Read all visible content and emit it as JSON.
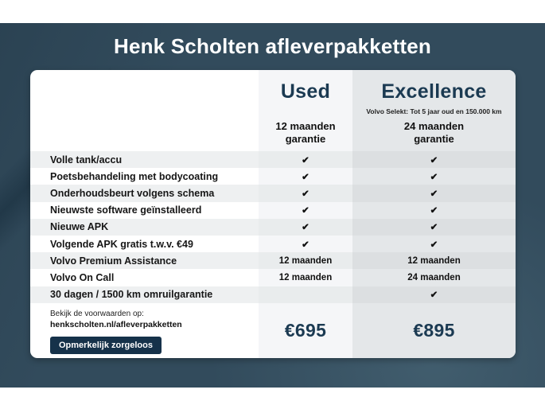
{
  "title": "Henk Scholten afleverpakketten",
  "packages": {
    "used": {
      "name": "Used",
      "subtitle": "",
      "warranty_line1": "12 maanden",
      "warranty_line2": "garantie",
      "price": "€695"
    },
    "excellence": {
      "name": "Excellence",
      "subtitle": "Volvo Selekt: Tot 5 jaar oud en 150.000 km",
      "warranty_line1": "24 maanden",
      "warranty_line2": "garantie",
      "price": "€895"
    }
  },
  "rows": [
    {
      "label": "Volle tank/accu",
      "used": "✔",
      "excellence": "✔"
    },
    {
      "label": "Poetsbehandeling met bodycoating",
      "used": "✔",
      "excellence": "✔"
    },
    {
      "label": "Onderhoudsbeurt volgens schema",
      "used": "✔",
      "excellence": "✔"
    },
    {
      "label": "Nieuwste software geïnstalleerd",
      "used": "✔",
      "excellence": "✔"
    },
    {
      "label": "Nieuwe APK",
      "used": "✔",
      "excellence": "✔"
    },
    {
      "label": "Volgende APK gratis t.w.v. €49",
      "used": "✔",
      "excellence": "✔"
    },
    {
      "label": "Volvo Premium Assistance",
      "used": "12 maanden",
      "excellence": "12 maanden"
    },
    {
      "label": "Volvo On Call",
      "used": "12 maanden",
      "excellence": "24 maanden"
    },
    {
      "label": "30 dagen / 1500 km omruilgarantie",
      "used": "",
      "excellence": "✔"
    }
  ],
  "footer": {
    "conditions_line1": "Bekijk de voorwaarden op:",
    "conditions_line2": "henkscholten.nl/afleverpakketten",
    "button_label": "Opmerkelijk zorgeloos"
  },
  "colors": {
    "background": "#324B5C",
    "accent_navy": "#1B3A52",
    "button": "#16324A",
    "used_column": "#F5F6F8",
    "excellence_column": "#E4E7E9",
    "stripe": "#EEF0F1"
  }
}
